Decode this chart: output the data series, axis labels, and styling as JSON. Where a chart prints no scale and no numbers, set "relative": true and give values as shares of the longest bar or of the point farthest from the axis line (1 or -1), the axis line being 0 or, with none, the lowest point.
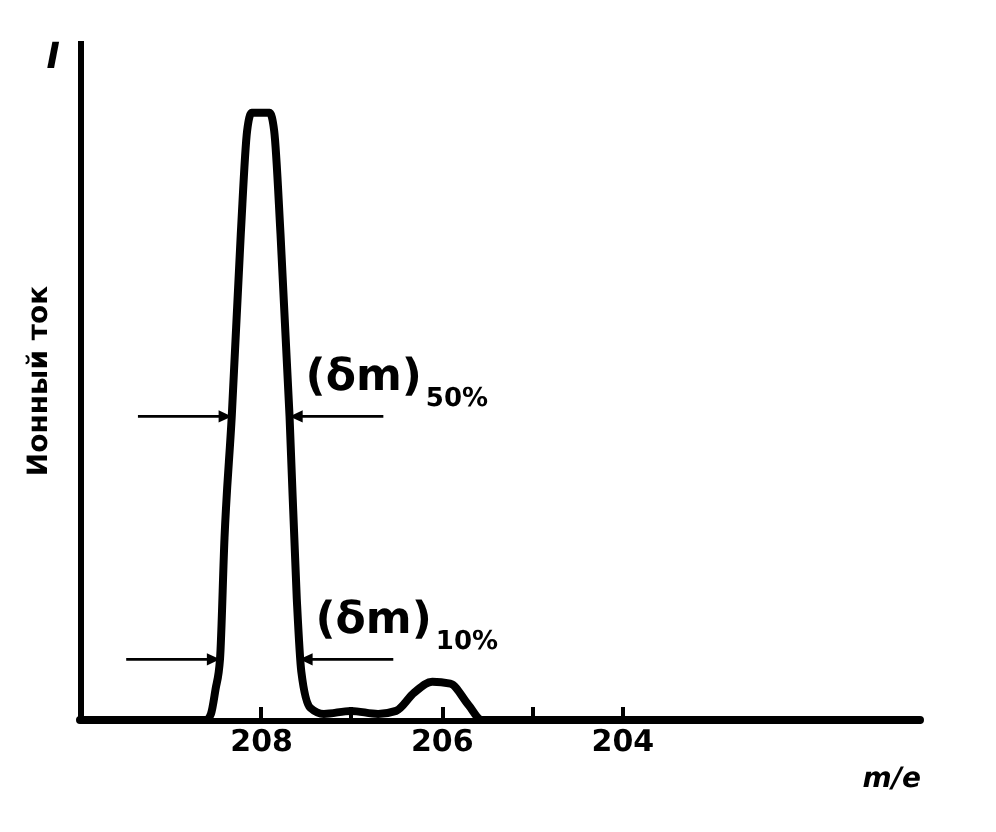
{
  "chart_data": {
    "type": "line",
    "relative": true,
    "xlabel": "m/e",
    "ylabel": "Ионный ток",
    "x": [
      210,
      208.6,
      208.55,
      208.5,
      208.45,
      208.4,
      208.32,
      208.22,
      208.15,
      208.1,
      207.9,
      207.85,
      207.78,
      207.68,
      207.6,
      207.55,
      207.45,
      207.3,
      207,
      206.7,
      206.5,
      206.3,
      206.1,
      205.9,
      205.7,
      205.55,
      200.7
    ],
    "series": [
      {
        "color": "#000000",
        "values": [
          0,
          0,
          0.01,
          0.05,
          0.1,
          0.3,
          0.5,
          0.8,
          0.97,
          1,
          1,
          0.97,
          0.8,
          0.5,
          0.2,
          0.08,
          0.02,
          0.01,
          0.015,
          0.01,
          0.015,
          0.045,
          0.063,
          0.06,
          0.025,
          0,
          0
        ]
      }
    ],
    "xlim": [
      210,
      200.7
    ],
    "xticks": [
      208,
      {
        "value": 207,
        "label": null
      },
      206,
      {
        "value": 205,
        "label": null
      },
      204
    ],
    "annotations": [
      "I",
      {
        "text": "(δm)$_{50%}$",
        "x": 207.68,
        "y": 0.5
      },
      {
        "text": "(δm)$_{10%}$",
        "x": 207.57,
        "y": 0.1
      }
    ],
    "grid": false,
    "marker": "none",
    "line_style": "solid"
  }
}
